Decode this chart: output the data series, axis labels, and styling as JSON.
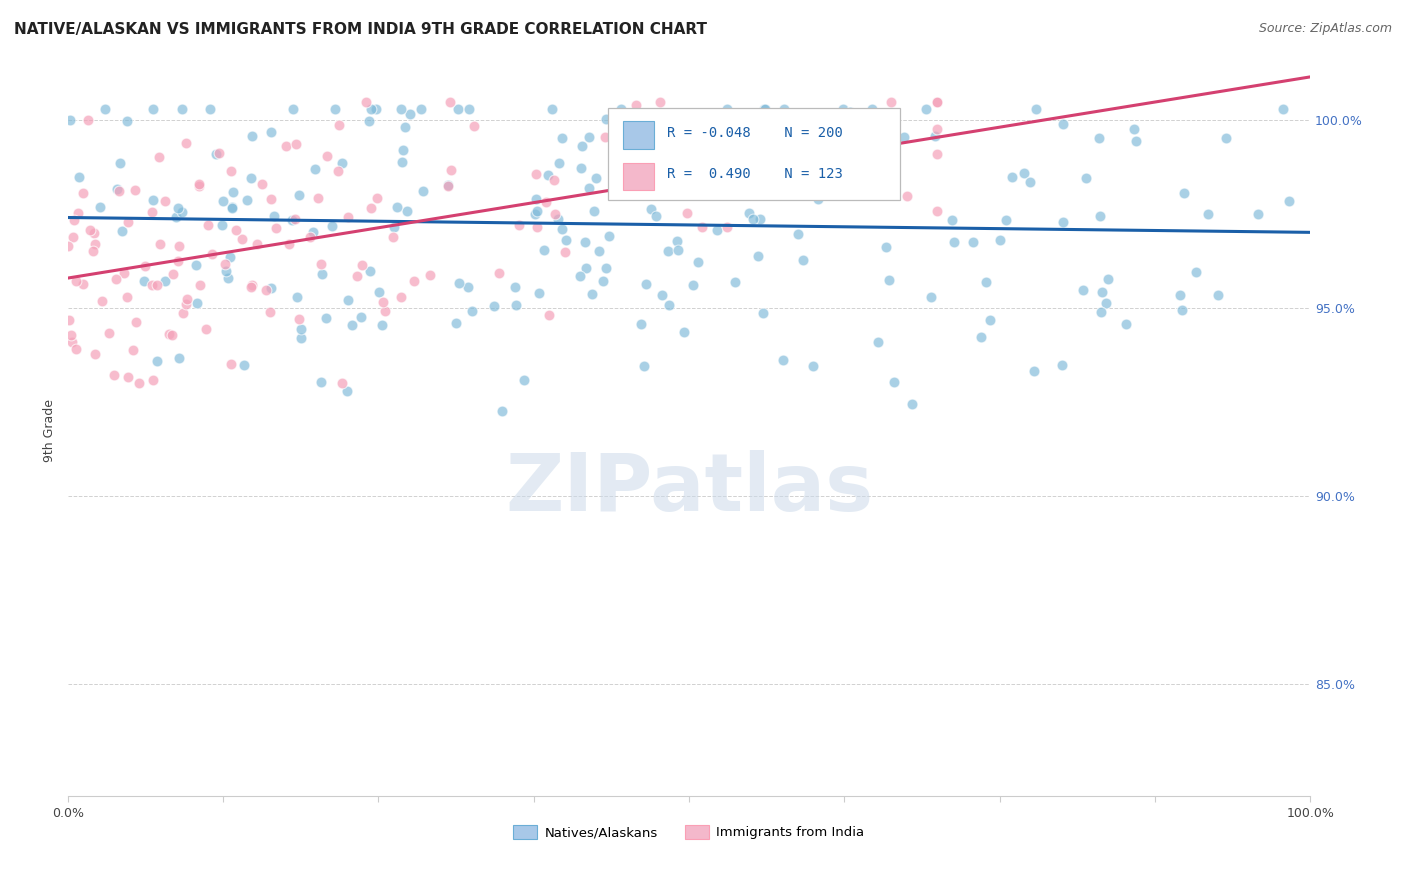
{
  "title": "NATIVE/ALASKAN VS IMMIGRANTS FROM INDIA 9TH GRADE CORRELATION CHART",
  "source": "Source: ZipAtlas.com",
  "ylabel": "9th Grade",
  "ytick_labels": [
    "100.0%",
    "95.0%",
    "90.0%",
    "85.0%"
  ],
  "ytick_values": [
    1.0,
    0.95,
    0.9,
    0.85
  ],
  "xmin": 0.0,
  "xmax": 1.0,
  "ymin": 0.82,
  "ymax": 1.015,
  "legend_blue_label": "Natives/Alaskans",
  "legend_pink_label": "Immigrants from India",
  "R_blue": -0.048,
  "N_blue": 200,
  "R_pink": 0.49,
  "N_pink": 123,
  "blue_color": "#7bb8d8",
  "pink_color": "#f4a0b8",
  "blue_line_color": "#1a5fa8",
  "pink_line_color": "#d44070",
  "watermark": "ZIPatlas",
  "title_fontsize": 11,
  "source_fontsize": 9,
  "axis_label_fontsize": 9,
  "tick_fontsize": 9,
  "seed_blue": 42,
  "seed_pink": 7
}
